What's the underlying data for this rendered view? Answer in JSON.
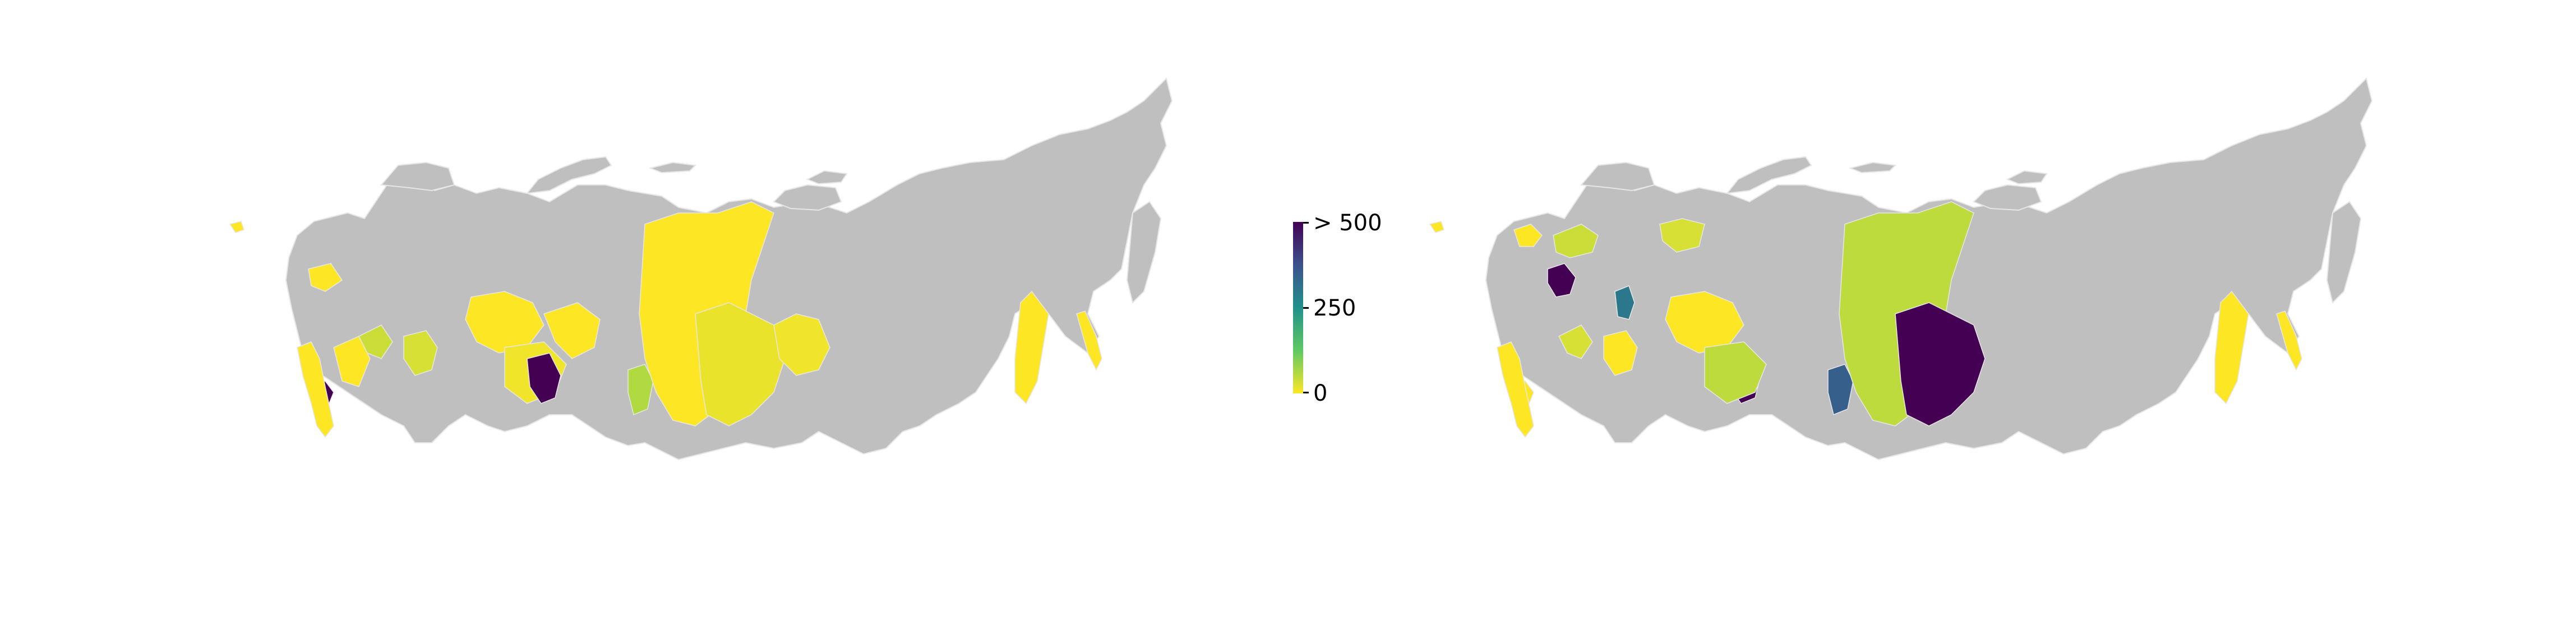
{
  "colors": {
    "no_data": "#bfbfbf",
    "region_border": "#e6e6e6",
    "background": "#ffffff"
  },
  "colorbar": {
    "labels": [
      "> 500",
      "250",
      "0"
    ],
    "colors": [
      "#440154",
      "#3b528b",
      "#21918c",
      "#5ec962",
      "#fde725"
    ]
  },
  "maps": [
    {
      "regions": [
        {
          "region": "north-caucasus",
          "value": 500
        },
        {
          "region": "black-sea-coast",
          "value": 0
        },
        {
          "region": "volga-south",
          "value": 0
        },
        {
          "region": "central-small-1",
          "value": 0
        },
        {
          "region": "central-small-2",
          "value": 40
        },
        {
          "region": "urals-south",
          "value": 30
        },
        {
          "region": "tyumen",
          "value": 0
        },
        {
          "region": "novosibirsk-area",
          "value": 10
        },
        {
          "region": "altai-west",
          "value": 500
        },
        {
          "region": "tomsk",
          "value": 0
        },
        {
          "region": "kemerovo",
          "value": 60
        },
        {
          "region": "krasnoyarsk",
          "value": 0
        },
        {
          "region": "irkutsk",
          "value": 15
        },
        {
          "region": "yakutia-south",
          "value": 10
        },
        {
          "region": "primorye",
          "value": 0
        },
        {
          "region": "sakhalin",
          "value": 0
        },
        {
          "region": "kaliningrad",
          "value": 0
        }
      ]
    },
    {
      "regions": [
        {
          "region": "north-caucasus",
          "value": 0
        },
        {
          "region": "black-sea-coast",
          "value": 0
        },
        {
          "region": "moscow-area",
          "value": 500
        },
        {
          "region": "northwest-1",
          "value": 40
        },
        {
          "region": "northwest-2",
          "value": 0
        },
        {
          "region": "central-small-2",
          "value": 30
        },
        {
          "region": "perm",
          "value": 300
        },
        {
          "region": "urals-south",
          "value": 0
        },
        {
          "region": "tyumen",
          "value": 0
        },
        {
          "region": "yamal",
          "value": 30
        },
        {
          "region": "altai-west",
          "value": 500
        },
        {
          "region": "novosibirsk-area",
          "value": 50
        },
        {
          "region": "kemerovo",
          "value": 350
        },
        {
          "region": "krasnoyarsk",
          "value": 50
        },
        {
          "region": "irkutsk",
          "value": 500
        },
        {
          "region": "primorye",
          "value": 0
        },
        {
          "region": "sakhalin",
          "value": 0
        },
        {
          "region": "kaliningrad",
          "value": 0
        }
      ]
    }
  ]
}
